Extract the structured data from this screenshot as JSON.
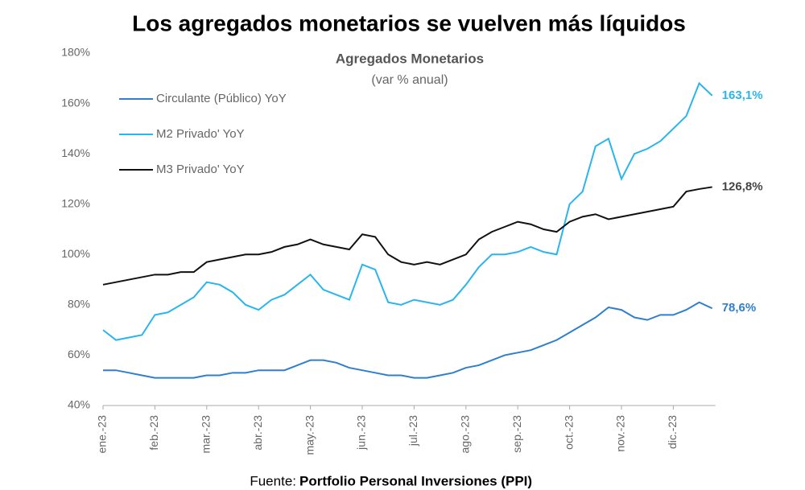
{
  "chart_data": {
    "type": "line",
    "title": "Los agregados monetarios se vuelven más líquidos",
    "subtitle": "Agregados Monetarios",
    "subtitle2": "(var % anual)",
    "source_prefix": "Fuente:",
    "source": "Portfolio Personal Inversiones (PPI)",
    "categories": [
      "ene.-23",
      null,
      null,
      null,
      "feb.-23",
      null,
      null,
      null,
      "mar.-23",
      null,
      null,
      null,
      "abr.-23",
      null,
      null,
      null,
      "may.-23",
      null,
      null,
      null,
      "jun.-23",
      null,
      null,
      null,
      "jul.-23",
      null,
      null,
      null,
      "ago.-23",
      null,
      null,
      null,
      "sep.-23",
      null,
      null,
      null,
      "oct.-23",
      null,
      null,
      null,
      "nov.-23",
      null,
      null,
      null,
      "dic.-23",
      null,
      null,
      null
    ],
    "series": [
      {
        "name": "Circulante (Público) YoY",
        "color": "#2f7fcf",
        "last_label": "78,6%",
        "values": [
          54,
          54,
          53,
          52,
          51,
          51,
          51,
          51,
          52,
          52,
          53,
          53,
          54,
          54,
          54,
          56,
          58,
          58,
          57,
          55,
          54,
          53,
          52,
          52,
          51,
          51,
          52,
          53,
          55,
          56,
          58,
          60,
          61,
          62,
          64,
          66,
          69,
          72,
          75,
          79,
          78,
          75,
          74,
          76,
          76,
          78,
          81,
          78.6
        ]
      },
      {
        "name": "M2 Privado' YoY",
        "color": "#29b5ee",
        "last_label": "163,1%",
        "values": [
          70,
          66,
          67,
          68,
          76,
          77,
          80,
          83,
          89,
          88,
          85,
          80,
          78,
          82,
          84,
          88,
          92,
          86,
          84,
          82,
          96,
          94,
          81,
          80,
          82,
          81,
          80,
          82,
          88,
          95,
          100,
          100,
          101,
          103,
          101,
          100,
          120,
          125,
          143,
          146,
          130,
          140,
          142,
          145,
          150,
          155,
          168,
          163.1
        ]
      },
      {
        "name": "M3 Privado' YoY",
        "color": "#111111",
        "last_label": "126,8%",
        "values": [
          88,
          89,
          90,
          91,
          92,
          92,
          93,
          93,
          97,
          98,
          99,
          100,
          100,
          101,
          103,
          104,
          106,
          104,
          103,
          102,
          108,
          107,
          100,
          97,
          96,
          97,
          96,
          98,
          100,
          106,
          109,
          111,
          113,
          112,
          110,
          109,
          113,
          115,
          116,
          114,
          115,
          116,
          117,
          118,
          119,
          125,
          126,
          126.8
        ]
      }
    ],
    "ylim": [
      40,
      180
    ],
    "yticks": [
      {
        "value": 40,
        "label": "40%"
      },
      {
        "value": 60,
        "label": "60%"
      },
      {
        "value": 80,
        "label": "80%"
      },
      {
        "value": 100,
        "label": "100%"
      },
      {
        "value": 120,
        "label": "120%"
      },
      {
        "value": 140,
        "label": "140%"
      },
      {
        "value": 160,
        "label": "160%"
      },
      {
        "value": 180,
        "label": "180%"
      }
    ],
    "legend": "upper left"
  }
}
